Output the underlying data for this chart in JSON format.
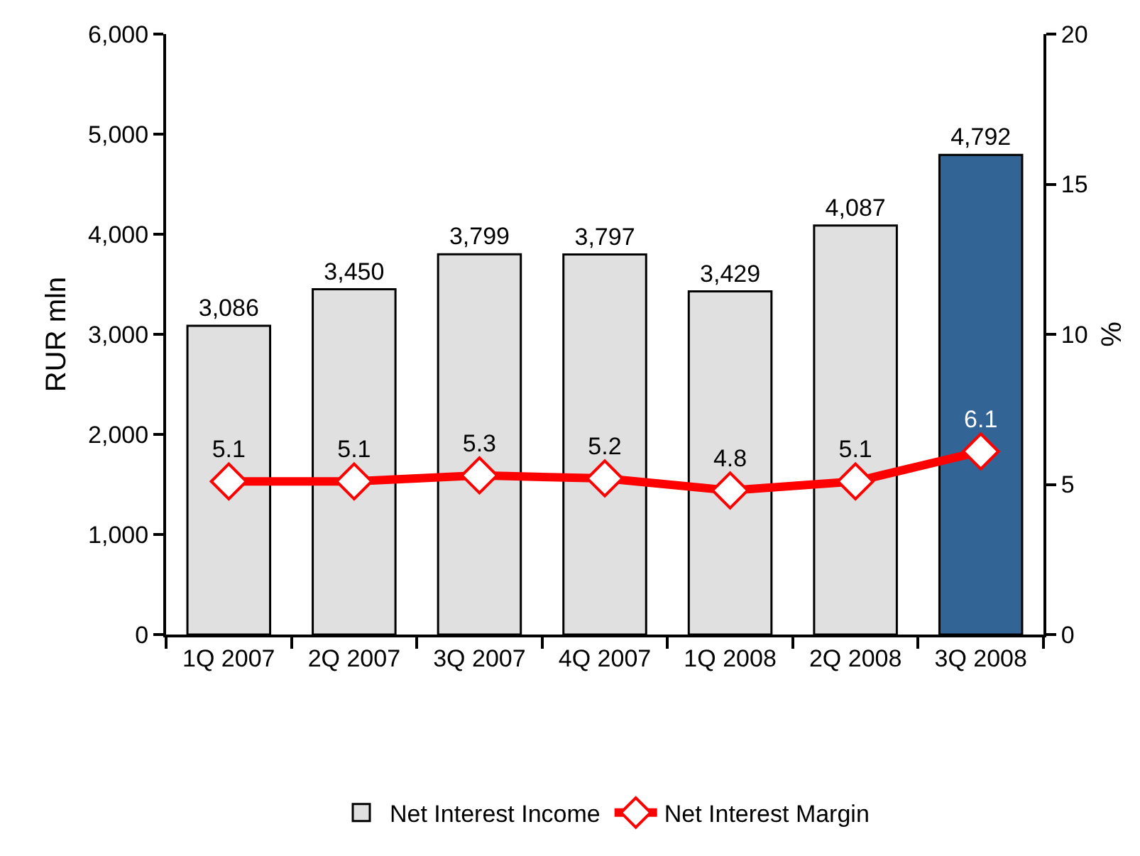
{
  "chart_data": {
    "type": "bar",
    "categories": [
      "1Q 2007",
      "2Q 2007",
      "3Q 2007",
      "4Q 2007",
      "1Q 2008",
      "2Q 2008",
      "3Q 2008"
    ],
    "ylabel": "RUR mln",
    "y2label": "%",
    "series": [
      {
        "name": "Net Interest Income",
        "colors": [
          "#e0e0e0",
          "#e0e0e0",
          "#e0e0e0",
          "#e0e0e0",
          "#e0e0e0",
          "#e0e0e0",
          "#336496"
        ],
        "values": [
          3086,
          3450,
          3799,
          3797,
          3429,
          4087,
          4792
        ],
        "value_labels": [
          "3,086",
          "3,450",
          "3,799",
          "3,797",
          "3,429",
          "4,087",
          "4,792"
        ]
      },
      {
        "name": "Net Interest Margin",
        "type": "line",
        "axis": "y2",
        "color": "#ff0000",
        "values": [
          5.1,
          5.1,
          5.3,
          5.2,
          4.8,
          5.1,
          6.1
        ],
        "value_labels": [
          "5.1",
          "5.1",
          "5.3",
          "5.2",
          "4.8",
          "5.1",
          "6.1"
        ]
      }
    ],
    "ylim": [
      0,
      6000
    ],
    "yticks": [
      {
        "value": 0,
        "label": "0"
      },
      {
        "value": 1000,
        "label": "1,000"
      },
      {
        "value": 2000,
        "label": "2,000"
      },
      {
        "value": 3000,
        "label": "3,000"
      },
      {
        "value": 4000,
        "label": "4,000"
      },
      {
        "value": 5000,
        "label": "5,000"
      },
      {
        "value": 6000,
        "label": "6,000"
      }
    ],
    "y2lim": [
      0,
      20
    ],
    "y2ticks": [
      0,
      5,
      10,
      15,
      20
    ],
    "marker": "diamond",
    "line_style": "solid",
    "grid": false,
    "legend": "bottom"
  }
}
